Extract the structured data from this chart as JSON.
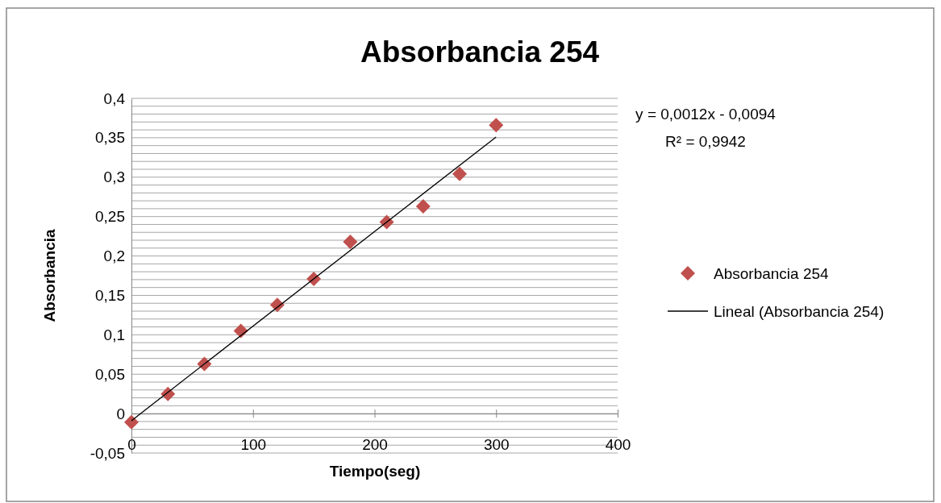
{
  "chart_data": {
    "type": "scatter",
    "title": "Absorbancia 254",
    "xlabel": "Tiempo(seg)",
    "ylabel": "Absorbancia",
    "xlim": [
      0,
      400
    ],
    "xticks": [
      0,
      100,
      200,
      300,
      400
    ],
    "ylim": [
      -0.05,
      0.4
    ],
    "yticks": [
      {
        "value": -0.05,
        "label": "-0,05"
      },
      {
        "value": -0.04,
        "label": null
      },
      {
        "value": -0.03,
        "label": null
      },
      {
        "value": -0.02,
        "label": null
      },
      {
        "value": -0.01,
        "label": null
      },
      {
        "value": 0,
        "label": "0"
      },
      {
        "value": 0.01,
        "label": null
      },
      {
        "value": 0.02,
        "label": null
      },
      {
        "value": 0.03,
        "label": null
      },
      {
        "value": 0.04,
        "label": null
      },
      {
        "value": 0.05,
        "label": "0,05"
      },
      {
        "value": 0.06,
        "label": null
      },
      {
        "value": 0.07,
        "label": null
      },
      {
        "value": 0.08,
        "label": null
      },
      {
        "value": 0.09,
        "label": null
      },
      {
        "value": 0.1,
        "label": "0,1"
      },
      {
        "value": 0.11,
        "label": null
      },
      {
        "value": 0.12,
        "label": null
      },
      {
        "value": 0.13,
        "label": null
      },
      {
        "value": 0.14,
        "label": null
      },
      {
        "value": 0.15,
        "label": "0,15"
      },
      {
        "value": 0.16,
        "label": null
      },
      {
        "value": 0.17,
        "label": null
      },
      {
        "value": 0.18,
        "label": null
      },
      {
        "value": 0.19,
        "label": null
      },
      {
        "value": 0.2,
        "label": "0,2"
      },
      {
        "value": 0.21,
        "label": null
      },
      {
        "value": 0.22,
        "label": null
      },
      {
        "value": 0.23,
        "label": null
      },
      {
        "value": 0.24,
        "label": null
      },
      {
        "value": 0.25,
        "label": "0,25"
      },
      {
        "value": 0.26,
        "label": null
      },
      {
        "value": 0.27,
        "label": null
      },
      {
        "value": 0.28,
        "label": null
      },
      {
        "value": 0.29,
        "label": null
      },
      {
        "value": 0.3,
        "label": "0,3"
      },
      {
        "value": 0.31,
        "label": null
      },
      {
        "value": 0.32,
        "label": null
      },
      {
        "value": 0.33,
        "label": null
      },
      {
        "value": 0.34,
        "label": null
      },
      {
        "value": 0.35,
        "label": "0,35"
      },
      {
        "value": 0.36,
        "label": null
      },
      {
        "value": 0.37,
        "label": null
      },
      {
        "value": 0.38,
        "label": null
      },
      {
        "value": 0.39,
        "label": null
      },
      {
        "value": 0.4,
        "label": "0,4"
      }
    ],
    "grid": "y",
    "legend": "right",
    "series": [
      {
        "name": "Absorbancia 254",
        "marker": "diamond",
        "color": "#c0504d",
        "x": [
          0,
          30,
          60,
          90,
          120,
          150,
          180,
          210,
          240,
          270,
          300
        ],
        "values": [
          -0.011,
          0.025,
          0.063,
          0.105,
          0.138,
          0.171,
          0.218,
          0.243,
          0.263,
          0.304,
          0.366
        ]
      },
      {
        "name": "Lineal (Absorbancia 254)",
        "type": "line",
        "color": "#000000",
        "x": [
          0,
          300
        ],
        "values": [
          -0.009,
          0.351
        ]
      }
    ],
    "annotations": [
      "y = 0,0012x - 0,0094",
      "R² = 0,9942"
    ]
  }
}
